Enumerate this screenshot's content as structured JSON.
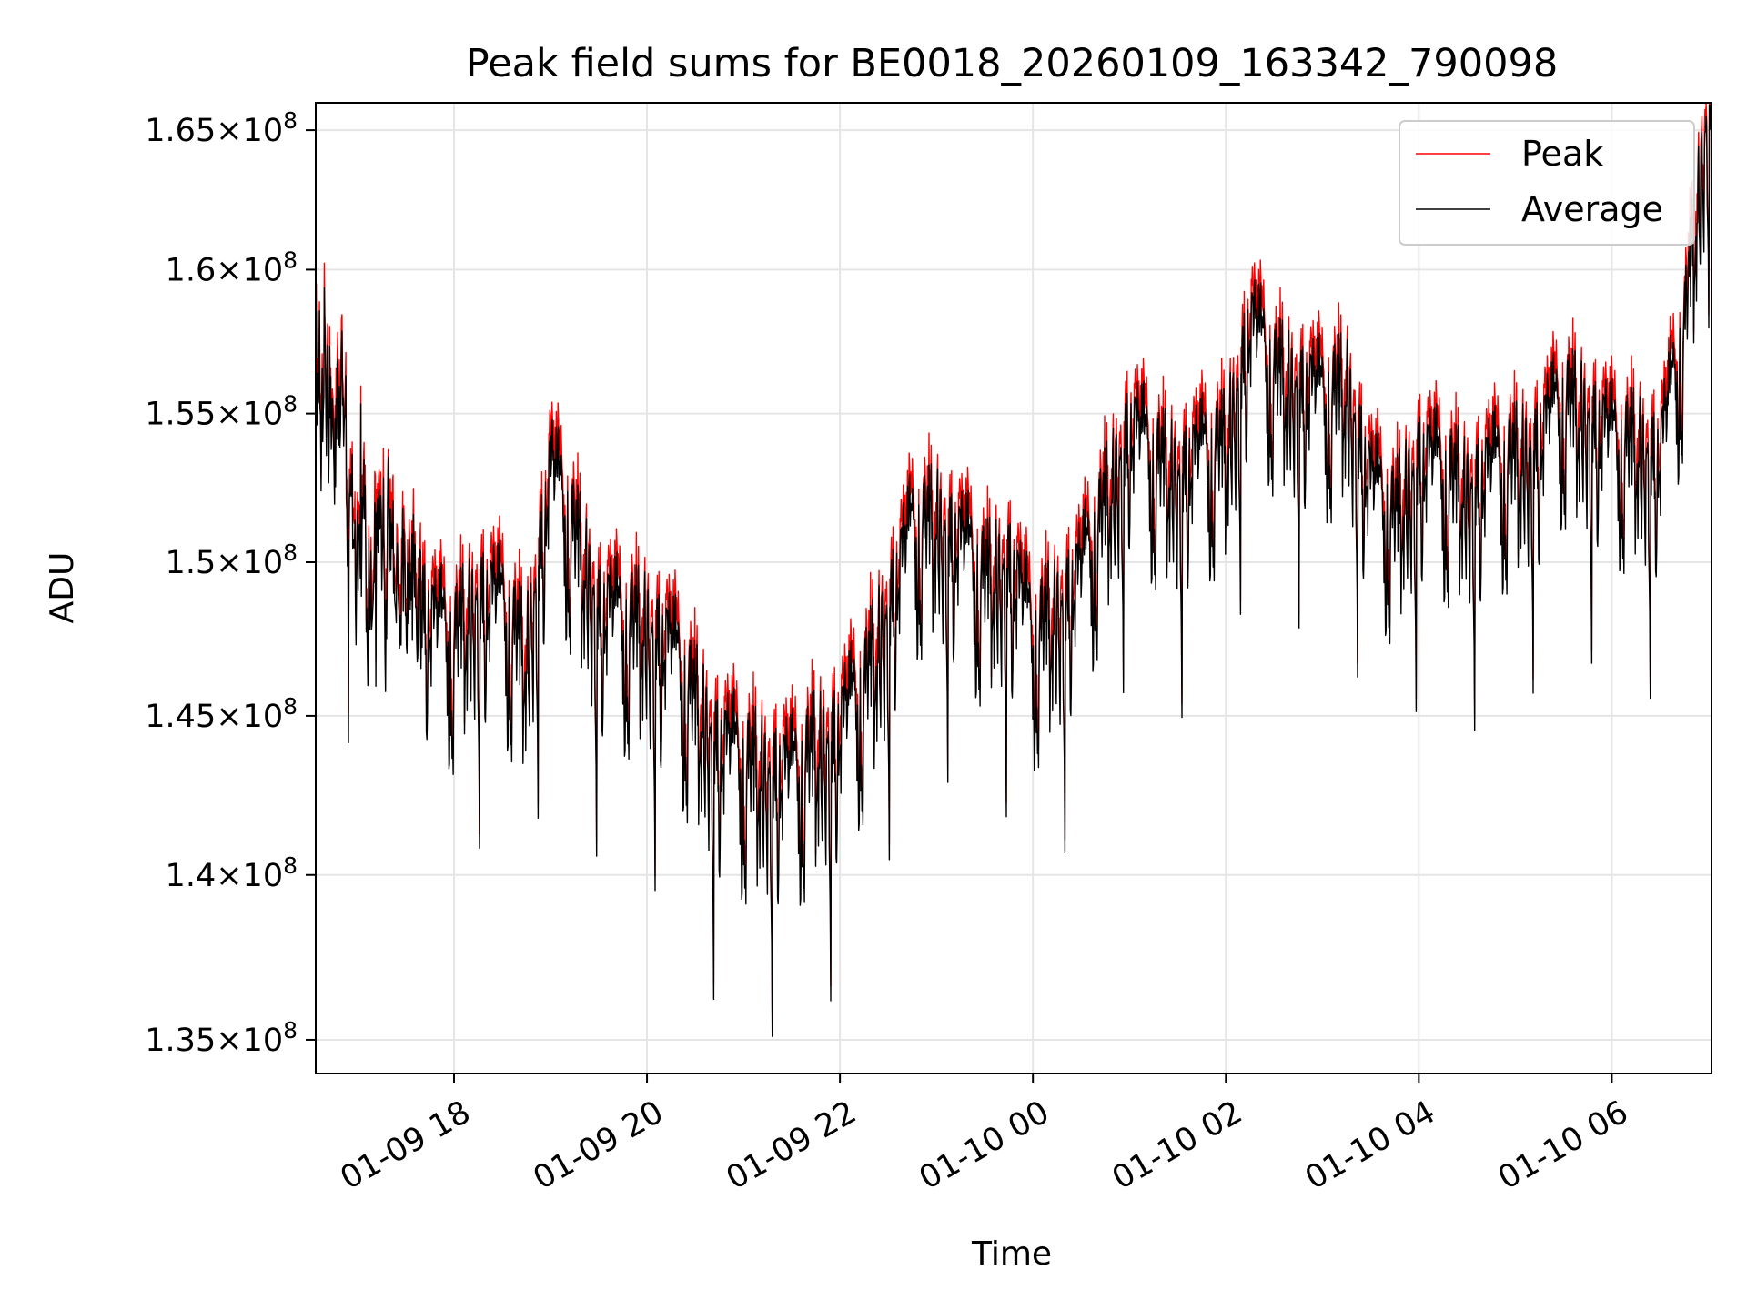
{
  "chart_data": {
    "type": "line",
    "title": "Peak field sums for BE0018_20260109_163342_790098",
    "xlabel": "Time",
    "ylabel": "ADU",
    "x_range": [
      "01-09 16:34",
      "01-10 07:02"
    ],
    "ylim": [
      134000000,
      166000000
    ],
    "y_scale": "log",
    "grid": true,
    "legend_position": "upper-right",
    "x_tick_labels": [
      "01-09 18",
      "01-09 20",
      "01-09 22",
      "01-10 00",
      "01-10 02",
      "01-10 04",
      "01-10 06"
    ],
    "y_ticks": [
      {
        "value": 135000000,
        "mantissa": "1.35",
        "exponent": "8"
      },
      {
        "value": 140000000,
        "mantissa": "1.4",
        "exponent": "8"
      },
      {
        "value": 145000000,
        "mantissa": "1.45",
        "exponent": "8"
      },
      {
        "value": 150000000,
        "mantissa": "1.5",
        "exponent": "8"
      },
      {
        "value": 155000000,
        "mantissa": "1.55",
        "exponent": "8"
      },
      {
        "value": 160000000,
        "mantissa": "1.6",
        "exponent": "8"
      },
      {
        "value": 165000000,
        "mantissa": "1.65",
        "exponent": "8"
      }
    ],
    "series": [
      {
        "name": "Peak",
        "color": "#ff0000"
      },
      {
        "name": "Average",
        "color": "#000000"
      }
    ],
    "anchor_points": {
      "x": [
        "01-09 16:34",
        "01-09 16:45",
        "01-09 17:00",
        "01-09 17:15",
        "01-09 17:30",
        "01-09 17:45",
        "01-09 18:00",
        "01-09 18:15",
        "01-09 18:30",
        "01-09 18:45",
        "01-09 19:00",
        "01-09 19:15",
        "01-09 19:30",
        "01-09 19:45",
        "01-09 20:00",
        "01-09 20:15",
        "01-09 20:30",
        "01-09 20:45",
        "01-09 21:00",
        "01-09 21:15",
        "01-09 21:30",
        "01-09 21:45",
        "01-09 22:00",
        "01-09 22:15",
        "01-09 22:30",
        "01-09 22:45",
        "01-09 23:00",
        "01-09 23:15",
        "01-09 23:30",
        "01-09 23:45",
        "01-10 00:00",
        "01-10 00:15",
        "01-10 00:30",
        "01-10 00:45",
        "01-10 01:00",
        "01-10 01:15",
        "01-10 01:30",
        "01-10 01:45",
        "01-10 02:00",
        "01-10 02:15",
        "01-10 02:30",
        "01-10 02:45",
        "01-10 03:00",
        "01-10 03:15",
        "01-10 03:30",
        "01-10 03:45",
        "01-10 04:00",
        "01-10 04:15",
        "01-10 04:30",
        "01-10 04:45",
        "01-10 05:00",
        "01-10 05:15",
        "01-10 05:30",
        "01-10 05:45",
        "01-10 06:00",
        "01-10 06:15",
        "01-10 06:30",
        "01-10 06:45",
        "01-10 07:02"
      ],
      "peak_approx": [
        157000000,
        156000000,
        150000000,
        150500000,
        149500000,
        147000000,
        146500000,
        148000000,
        147500000,
        146000000,
        152000000,
        150000000,
        147500000,
        147000000,
        147000000,
        146000000,
        144500000,
        143000000,
        142500000,
        142200000,
        142000000,
        143000000,
        143500000,
        145000000,
        147500000,
        150000000,
        150500000,
        149500000,
        148500000,
        149000000,
        146500000,
        147500000,
        148500000,
        151000000,
        153500000,
        152500000,
        152000000,
        152500000,
        153000000,
        157000000,
        155500000,
        155000000,
        154500000,
        155000000,
        151500000,
        150500000,
        152500000,
        152000000,
        151500000,
        152000000,
        152500000,
        153000000,
        154500000,
        154000000,
        153000000,
        153000000,
        152500000,
        157000000,
        166000000
      ],
      "average_approx": [
        156500000,
        155500000,
        149500000,
        150000000,
        149000000,
        146500000,
        146000000,
        147500000,
        147000000,
        145500000,
        151500000,
        149500000,
        147000000,
        146500000,
        146500000,
        145500000,
        144000000,
        142500000,
        142000000,
        141800000,
        141500000,
        142500000,
        143000000,
        144500000,
        147000000,
        149500000,
        150000000,
        149000000,
        148000000,
        148500000,
        146000000,
        147000000,
        148000000,
        150500000,
        153000000,
        152000000,
        151500000,
        152000000,
        152500000,
        156500000,
        155000000,
        154500000,
        154000000,
        154500000,
        151000000,
        150000000,
        152000000,
        151500000,
        151000000,
        151500000,
        152000000,
        152500000,
        154000000,
        153500000,
        152500000,
        152500000,
        152000000,
        156500000,
        165500000
      ]
    }
  }
}
